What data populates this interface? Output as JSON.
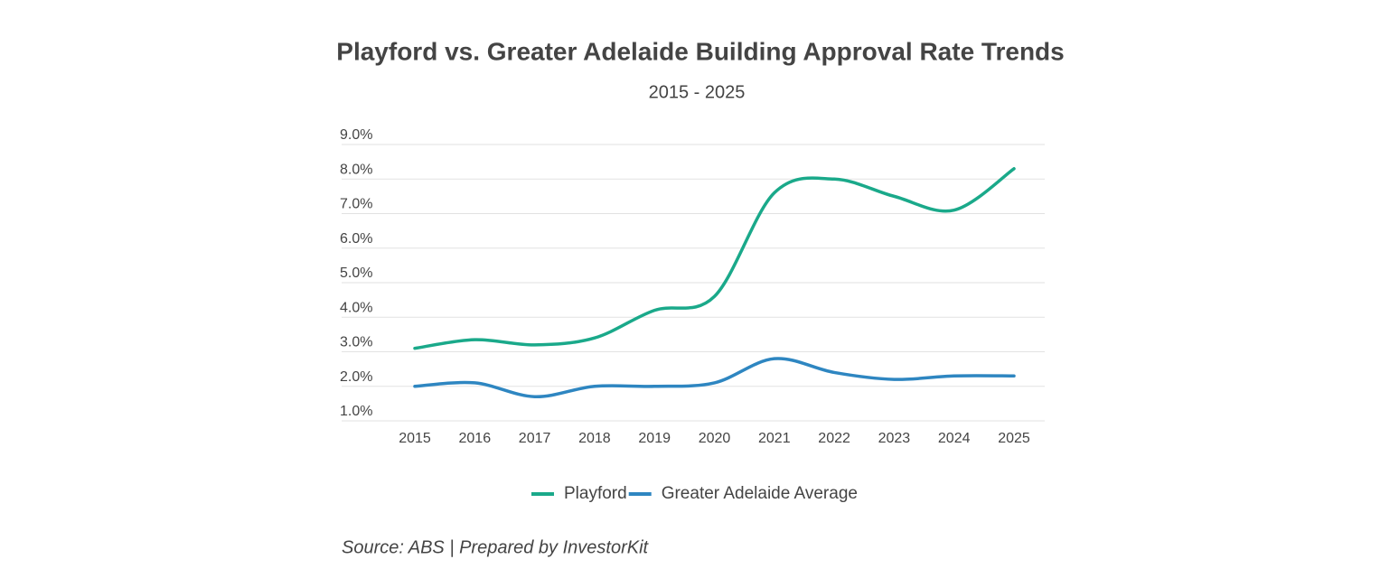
{
  "chart_data": {
    "type": "line",
    "title": "Playford vs. Greater Adelaide Building Approval Rate Trends",
    "subtitle": "2015 - 2025",
    "categories": [
      "2015",
      "2016",
      "2017",
      "2018",
      "2019",
      "2020",
      "2021",
      "2022",
      "2023",
      "2024",
      "2025"
    ],
    "series": [
      {
        "name": "Playford",
        "color": "#1aa98a",
        "values": [
          3.1,
          3.35,
          3.2,
          3.4,
          4.2,
          4.6,
          7.6,
          8.0,
          7.5,
          7.1,
          8.3
        ]
      },
      {
        "name": "Greater Adelaide Average",
        "color": "#2e86c1",
        "values": [
          2.0,
          2.1,
          1.7,
          2.0,
          2.0,
          2.1,
          2.8,
          2.4,
          2.2,
          2.3,
          2.3
        ]
      }
    ],
    "ylim": [
      1,
      9
    ],
    "yticks": [
      {
        "value": 1,
        "label": "1.0%"
      },
      {
        "value": 2,
        "label": "2.0%"
      },
      {
        "value": 3,
        "label": "3.0%"
      },
      {
        "value": 4,
        "label": "4.0%"
      },
      {
        "value": 5,
        "label": "5.0%"
      },
      {
        "value": 6,
        "label": "6.0%"
      },
      {
        "value": 7,
        "label": "7.0%"
      },
      {
        "value": 8,
        "label": "8.0%"
      },
      {
        "value": 9,
        "label": "9.0%"
      }
    ],
    "grid": true,
    "legend": "bottom",
    "source": "Source: ABS | Prepared by InvestorKit"
  }
}
